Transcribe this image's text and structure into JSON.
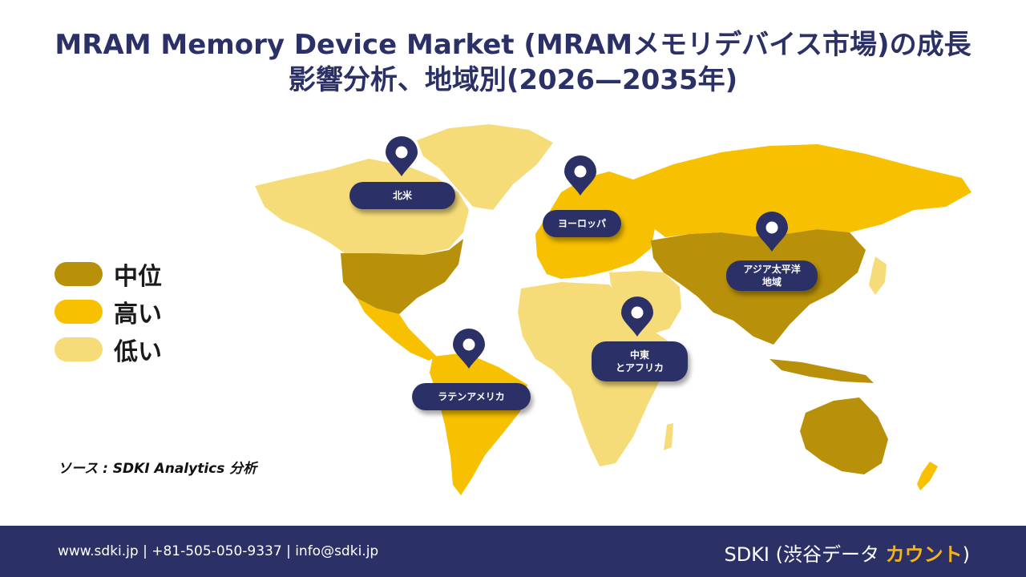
{
  "title": {
    "line1": "MRAM Memory Device Market (MRAMメモリデバイス市場)の成長",
    "line2": "影響分析、地域別(2026—2035年)"
  },
  "legend": [
    {
      "label": "中位",
      "color": "#b8900a"
    },
    {
      "label": "高い",
      "color": "#f7c000"
    },
    {
      "label": "低い",
      "color": "#f5dc78"
    }
  ],
  "regions": [
    {
      "label": "北米",
      "level": "中位"
    },
    {
      "label": "ヨーロッパ",
      "level": "高い"
    },
    {
      "label": "アジア太平洋\n地域",
      "level": "中位"
    },
    {
      "label": "中東\nとアフリカ",
      "level": "低い"
    },
    {
      "label": "ラテンアメリカ",
      "level": "高い"
    }
  ],
  "colors": {
    "navy": "#2b3166",
    "medium": "#b8900a",
    "high": "#f7c000",
    "low": "#f5dc78",
    "accent": "#f5b21a"
  },
  "source": "ソース : SDKI Analytics 分析",
  "footer": {
    "contact": "www.sdki.jp  | +81-505-050-9337 | info@sdki.jp",
    "brand_prefix": "SDKI (渋谷データ ",
    "brand_accent": "カウント",
    "brand_suffix": ")"
  }
}
